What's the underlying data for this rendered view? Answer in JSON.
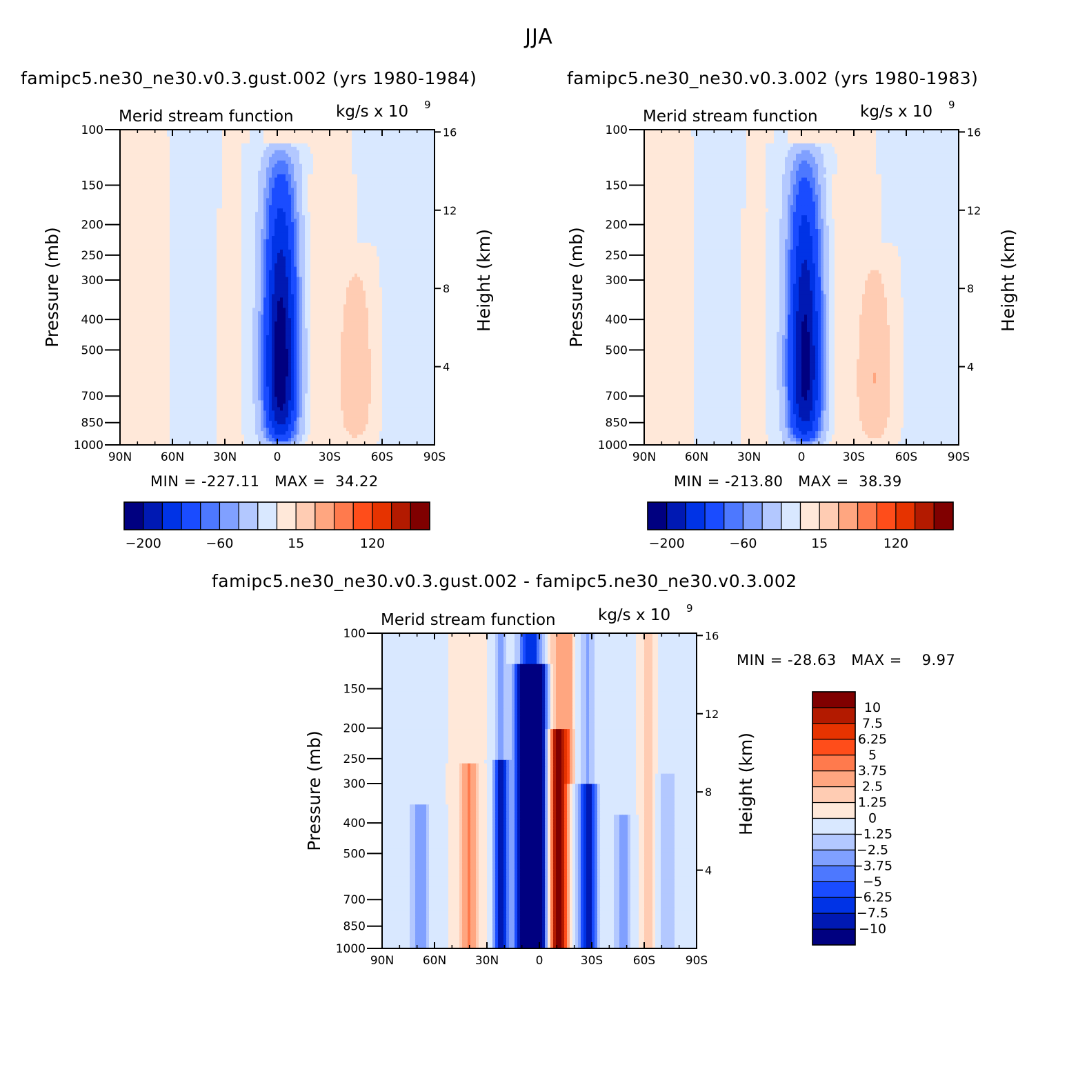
{
  "figure_title": "JJA",
  "colors": {
    "panel_scale": [
      "#000080",
      "#0019b3",
      "#0033e6",
      "#1a4cff",
      "#4d78ff",
      "#80a0ff",
      "#b3c8ff",
      "#d9e8ff",
      "#ffe8d9",
      "#ffccb3",
      "#ffa680",
      "#ff7a4d",
      "#ff4d1a",
      "#e63300",
      "#b31a00",
      "#800000"
    ],
    "diff_scale": [
      "#000080",
      "#0019b3",
      "#0033e6",
      "#1a4cff",
      "#4d78ff",
      "#80a0ff",
      "#b3c8ff",
      "#d9e8ff",
      "#ffe8d9",
      "#ffccb3",
      "#ffa680",
      "#ff7a4d",
      "#ff4d1a",
      "#e63300",
      "#b31a00",
      "#800000"
    ]
  },
  "panels": [
    {
      "id": "top-left",
      "title": "famipc5.ne30_ne30.v0.3.gust.002 (yrs 1980-1984)",
      "variable": "Merid stream function",
      "units": "kg/s x 10",
      "units_exp": "9",
      "ylabel": "Pressure (mb)",
      "y2label": "Height (km)",
      "min_label": "MIN =",
      "min_value": "-227.11",
      "max_label": "MAX =",
      "max_value": "34.22"
    },
    {
      "id": "top-right",
      "title": "famipc5.ne30_ne30.v0.3.002 (yrs 1980-1983)",
      "variable": "Merid stream function",
      "units": "kg/s x 10",
      "units_exp": "9",
      "ylabel": "Pressure (mb)",
      "y2label": "Height (km)",
      "min_label": "MIN =",
      "min_value": "-213.80",
      "max_label": "MAX =",
      "max_value": "38.39"
    },
    {
      "id": "bottom-diff",
      "title": "famipc5.ne30_ne30.v0.3.gust.002 - famipc5.ne30_ne30.v0.3.002",
      "variable": "Merid stream function",
      "units": "kg/s x 10",
      "units_exp": "9",
      "ylabel": "Pressure (mb)",
      "y2label": "Height (km)",
      "min_label": "MIN =",
      "min_value": "-28.63",
      "max_label": "MAX =",
      "max_value": "9.97"
    }
  ],
  "chart_data": [
    {
      "type": "heatmap",
      "title": "famipc5.ne30_ne30.v0.3.gust.002 (yrs 1980-1984)",
      "subtitle": "Merid stream function",
      "units": "kg/s x 10^9",
      "xlabel": "",
      "ylabel": "Pressure (mb)",
      "y2label": "Height (km)",
      "x_ticks": [
        "90N",
        "60N",
        "30N",
        "0",
        "30S",
        "60S",
        "90S"
      ],
      "x_range": [
        90,
        -90
      ],
      "y_ticks": [
        100,
        150,
        200,
        250,
        300,
        400,
        500,
        700,
        850,
        1000
      ],
      "y_range": [
        1000,
        100
      ],
      "y_scale": "log",
      "y2_ticks": [
        4,
        8,
        12,
        16
      ],
      "colorbar_labels": [
        "-200",
        "-60",
        "15",
        "120"
      ],
      "min": -227.11,
      "max": 34.22,
      "features": [
        {
          "lat": 0,
          "p_top": 105,
          "peak": -227,
          "desc": "strong negative (Hadley) cell centred near 0-5S"
        },
        {
          "lat": -45,
          "p_top": 230,
          "peak": 34,
          "desc": "positive cell near 40-50S"
        },
        {
          "lat": 75,
          "p_top": 100,
          "peak": 10,
          "desc": "weak positive band at high northern latitudes"
        }
      ]
    },
    {
      "type": "heatmap",
      "title": "famipc5.ne30_ne30.v0.3.002 (yrs 1980-1983)",
      "subtitle": "Merid stream function",
      "units": "kg/s x 10^9",
      "xlabel": "",
      "ylabel": "Pressure (mb)",
      "y2label": "Height (km)",
      "x_ticks": [
        "90N",
        "60N",
        "30N",
        "0",
        "30S",
        "60S",
        "90S"
      ],
      "x_range": [
        90,
        -90
      ],
      "y_ticks": [
        100,
        150,
        200,
        250,
        300,
        400,
        500,
        700,
        850,
        1000
      ],
      "y_range": [
        1000,
        100
      ],
      "y_scale": "log",
      "y2_ticks": [
        4,
        8,
        12,
        16
      ],
      "colorbar_labels": [
        "-200",
        "-60",
        "15",
        "120"
      ],
      "min": -213.8,
      "max": 38.39,
      "features": [
        {
          "lat": 0,
          "p_top": 105,
          "peak": -214,
          "desc": "strong negative (Hadley) cell centred near 0-5S"
        },
        {
          "lat": -40,
          "p_top": 240,
          "peak": 38,
          "desc": "positive cell near 35-50S"
        },
        {
          "lat": 75,
          "p_top": 100,
          "peak": 10,
          "desc": "weak positive band at high northern latitudes"
        }
      ]
    },
    {
      "type": "heatmap",
      "title": "famipc5.ne30_ne30.v0.3.gust.002 - famipc5.ne30_ne30.v0.3.002",
      "subtitle": "Merid stream function",
      "units": "kg/s x 10^9",
      "xlabel": "",
      "ylabel": "Pressure (mb)",
      "y2label": "Height (km)",
      "x_ticks": [
        "90N",
        "60N",
        "30N",
        "0",
        "30S",
        "60S",
        "90S"
      ],
      "x_range": [
        90,
        -90
      ],
      "y_ticks": [
        100,
        150,
        200,
        250,
        300,
        400,
        500,
        700,
        850,
        1000
      ],
      "y_range": [
        1000,
        100
      ],
      "y_scale": "log",
      "y2_ticks": [
        4,
        8,
        12,
        16
      ],
      "colorbar_labels": [
        "10",
        "7.5",
        "6.25",
        "5",
        "3.75",
        "2.5",
        "1.25",
        "0",
        "-1.25",
        "-2.5",
        "-3.75",
        "-5",
        "-6.25",
        "-7.5",
        "-10"
      ],
      "min": -28.63,
      "max": 9.97,
      "features": [
        {
          "lat": 5,
          "p_top": 130,
          "peak": -28.6,
          "desc": "strong negative anomaly near 0-10N"
        },
        {
          "lat": -12,
          "p_top": 220,
          "peak": 9.97,
          "desc": "positive anomaly near 10-15S"
        },
        {
          "lat": 22,
          "p_top": 250,
          "peak": -8,
          "desc": "negative anomaly near 20-25N"
        },
        {
          "lat": -28,
          "p_top": 330,
          "peak": -8,
          "desc": "negative anomaly near 25-30S"
        }
      ]
    }
  ]
}
